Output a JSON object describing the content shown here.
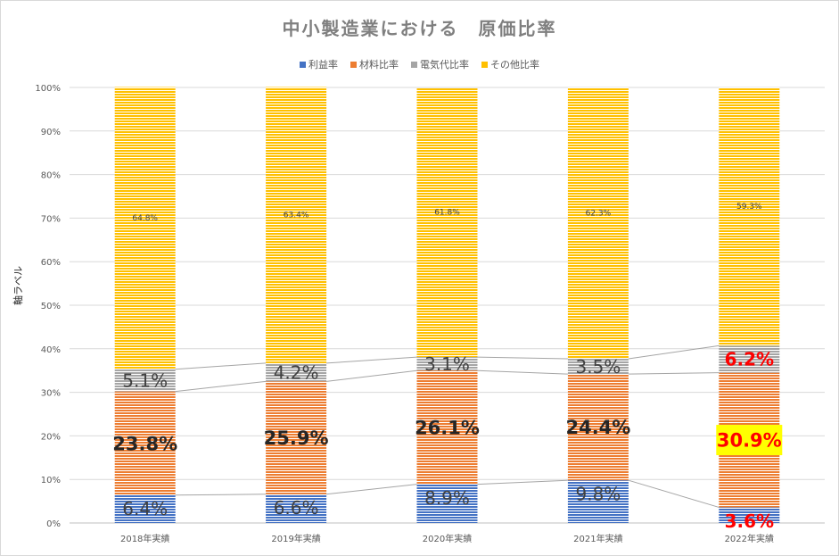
{
  "chart_data": {
    "type": "bar",
    "stacked": true,
    "percent_stacked": true,
    "title": "中小製造業における　原価比率",
    "ylabel": "軸ラベル",
    "xlabel": "",
    "ylim": [
      0,
      100
    ],
    "y_ticks": [
      "0%",
      "10%",
      "20%",
      "30%",
      "40%",
      "50%",
      "60%",
      "70%",
      "80%",
      "90%",
      "100%"
    ],
    "categories": [
      "2018年実績",
      "2019年実績",
      "2020年実績",
      "2021年実績",
      "2022年実績"
    ],
    "legend_position": "top",
    "grid": true,
    "series": [
      {
        "name": "利益率",
        "color": "#4472c4",
        "values": [
          6.4,
          6.6,
          8.9,
          9.8,
          3.6
        ],
        "labels": [
          "6.4%",
          "6.6%",
          "8.9%",
          "9.8%",
          "3.6%"
        ]
      },
      {
        "name": "材料比率",
        "color": "#ed7d31",
        "values": [
          23.8,
          25.9,
          26.1,
          24.4,
          30.9
        ],
        "labels": [
          "23.8%",
          "25.9%",
          "26.1%",
          "24.4%",
          "30.9%"
        ]
      },
      {
        "name": "電気代比率",
        "color": "#a5a5a5",
        "values": [
          5.1,
          4.2,
          3.1,
          3.5,
          6.2
        ],
        "labels": [
          "5.1%",
          "4.2%",
          "3.1%",
          "3.5%",
          "6.2%"
        ]
      },
      {
        "name": "その他比率",
        "color": "#ffc000",
        "values": [
          64.8,
          63.4,
          61.8,
          62.3,
          59.3
        ],
        "labels": [
          "64.8%",
          "63.4%",
          "61.8%",
          "62.3%",
          "59.3%"
        ]
      }
    ],
    "highlight_color": "#ff0000",
    "highlight_fill": "#ffff00"
  }
}
